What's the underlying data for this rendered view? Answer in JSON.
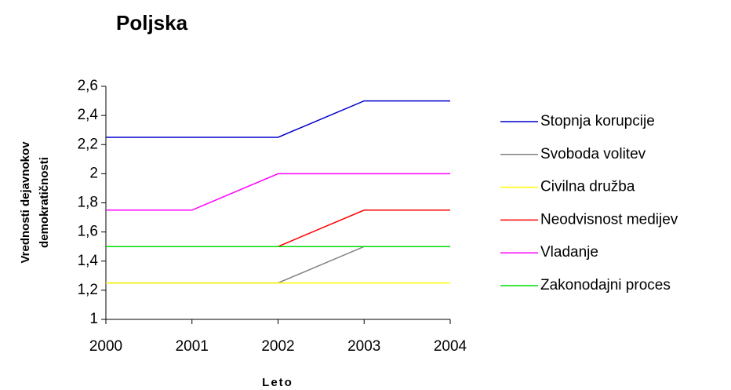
{
  "chart_data": {
    "type": "line",
    "title": "Poljska",
    "x_label": "Leto",
    "y_label": [
      "Vrednosti dejavnokov",
      "demokratičnosti"
    ],
    "x": [
      2000,
      2001,
      2002,
      2003,
      2004
    ],
    "xlim": [
      2000,
      2004
    ],
    "xticks": [
      2000,
      2001,
      2002,
      2003,
      2004
    ],
    "ylim": [
      1,
      2.6
    ],
    "yticks": [
      1,
      {
        "value": 1.2,
        "label": "1,2"
      },
      {
        "value": 1.4,
        "label": "1,4"
      },
      {
        "value": 1.6,
        "label": "1,6"
      },
      {
        "value": 1.8,
        "label": "1,8"
      },
      2,
      {
        "value": 2.2,
        "label": "2,2"
      },
      {
        "value": 2.4,
        "label": "2,4"
      },
      {
        "value": 2.6,
        "label": "2,6"
      }
    ],
    "legend": "right",
    "series": [
      {
        "name": "Stopnja korupcije",
        "color": "#0000cc",
        "values": [
          2.25,
          2.25,
          2.25,
          2.5,
          2.5
        ]
      },
      {
        "name": "Svoboda volitev",
        "color": "#808080",
        "values": [
          1.25,
          1.25,
          1.25,
          1.5,
          1.5
        ]
      },
      {
        "name": "Civilna družba",
        "color": "#ffff00",
        "values": [
          1.25,
          1.25,
          1.25,
          1.25,
          1.25
        ]
      },
      {
        "name": "Neodvisnost medijev",
        "color": "#ff0000",
        "values": [
          1.5,
          1.5,
          1.5,
          1.75,
          1.75
        ]
      },
      {
        "name": "Vladanje",
        "color": "#ff00ff",
        "values": [
          1.75,
          1.75,
          2,
          2,
          2
        ]
      },
      {
        "name": "Zakonodajni proces",
        "color": "#00dd00",
        "values": [
          1.5,
          1.5,
          1.5,
          1.5,
          1.5
        ]
      }
    ]
  }
}
